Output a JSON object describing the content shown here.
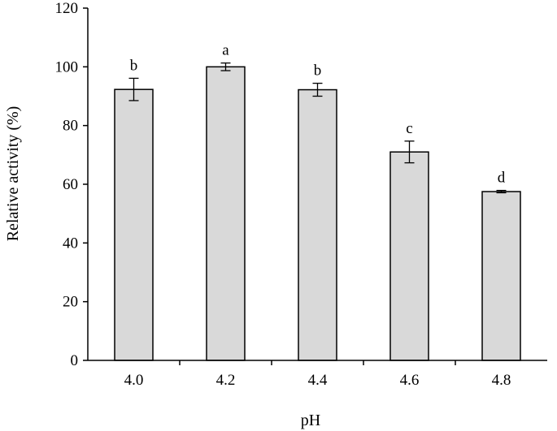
{
  "chart_data": {
    "type": "bar",
    "title": "",
    "xlabel": "pH",
    "ylabel": "Relative activity (%)",
    "categories": [
      "4.0",
      "4.2",
      "4.4",
      "4.6",
      "4.8"
    ],
    "values": [
      92.3,
      100.0,
      92.2,
      71.0,
      57.5
    ],
    "errors": [
      3.8,
      1.3,
      2.2,
      3.7,
      0.4
    ],
    "significance": [
      "b",
      "a",
      "b",
      "c",
      "d"
    ],
    "ylim": [
      0,
      120
    ],
    "yticks": [
      "0",
      "20",
      "40",
      "60",
      "80",
      "100",
      "120"
    ],
    "grid": false,
    "legend": "none",
    "bar_color": "#d9d9d9",
    "edge_color": "#000000"
  }
}
